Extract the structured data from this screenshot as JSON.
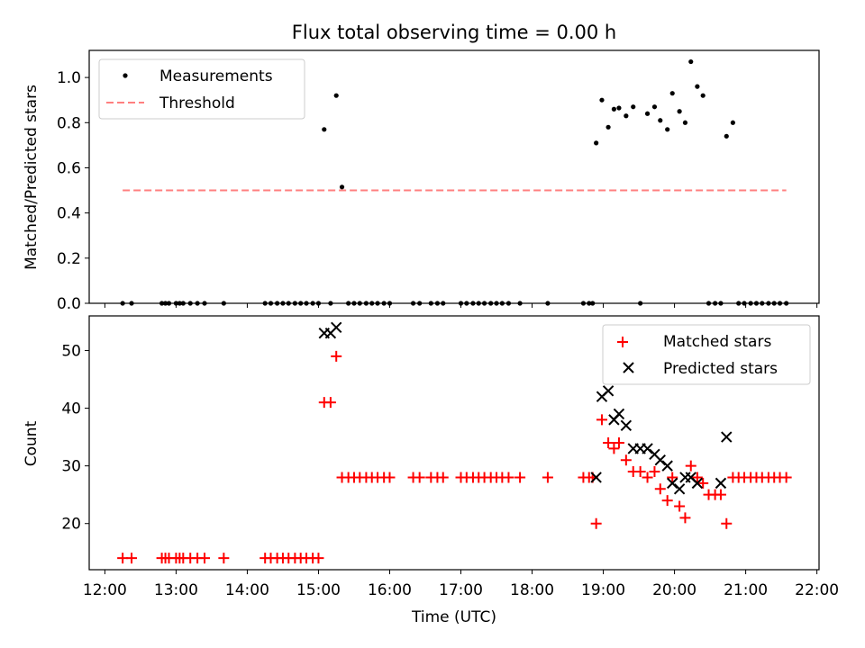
{
  "title": "Flux total observing time = 0.00 h",
  "colors": {
    "measurement": "#000000",
    "threshold": "#ff7f7f",
    "matched": "#ff0000",
    "predicted": "#000000"
  },
  "chart_data": [
    {
      "type": "scatter",
      "title": "Flux total observing time = 0.00 h",
      "xlabel": "",
      "ylabel": "Matched/Predicted stars",
      "ylim": [
        0,
        1.12
      ],
      "yticks": [
        "0.0",
        "0.2",
        "0.4",
        "0.6",
        "0.8",
        "1.0"
      ],
      "legend_position": "upper-left",
      "legend": [
        "Measurements",
        "Threshold"
      ],
      "series": [
        {
          "name": "Measurements",
          "marker": "dot",
          "x": [
            12.25,
            12.375,
            12.8,
            12.85,
            12.9,
            13.0,
            13.05,
            13.1,
            13.2,
            13.3,
            13.4,
            13.67,
            14.25,
            14.33,
            14.42,
            14.5,
            14.58,
            14.67,
            14.75,
            14.83,
            14.92,
            15.0,
            15.08,
            15.17,
            15.25,
            15.33,
            15.42,
            15.5,
            15.58,
            15.67,
            15.75,
            15.83,
            15.92,
            16.0,
            16.33,
            16.42,
            16.58,
            16.67,
            16.75,
            17.0,
            17.08,
            17.17,
            17.25,
            17.33,
            17.42,
            17.5,
            17.58,
            17.67,
            17.83,
            18.22,
            18.72,
            18.8,
            18.85,
            18.9,
            18.98,
            19.07,
            19.15,
            19.22,
            19.32,
            19.42,
            19.52,
            19.62,
            19.72,
            19.8,
            19.9,
            19.97,
            20.07,
            20.15,
            20.23,
            20.32,
            20.4,
            20.48,
            20.57,
            20.65,
            20.73,
            20.82,
            20.9,
            20.98,
            21.07,
            21.15,
            21.23,
            21.32,
            21.4,
            21.48,
            21.57
          ],
          "y": [
            0,
            0,
            0,
            0,
            0,
            0,
            0,
            0,
            0,
            0,
            0,
            0,
            0,
            0,
            0,
            0,
            0,
            0,
            0,
            0,
            0,
            0,
            0.77,
            0,
            0.92,
            0.515,
            0,
            0,
            0,
            0,
            0,
            0,
            0,
            0,
            0,
            0,
            0,
            0,
            0,
            0,
            0,
            0,
            0,
            0,
            0,
            0,
            0,
            0,
            0,
            0,
            0,
            0,
            0,
            0.71,
            0.9,
            0.78,
            0.86,
            0.865,
            0.83,
            0.87,
            0,
            0.84,
            0.87,
            0.81,
            0.77,
            0.93,
            0.85,
            0.8,
            1.07,
            0.96,
            0.92,
            0,
            0,
            0,
            0.74,
            0.8,
            0,
            0,
            0,
            0,
            0,
            0,
            0,
            0,
            0
          ]
        },
        {
          "name": "Threshold",
          "style": "dashed",
          "x": [
            12.25,
            21.57
          ],
          "y": [
            0.5,
            0.5
          ]
        }
      ]
    },
    {
      "type": "scatter",
      "xlabel": "Time (UTC)",
      "ylabel": "Count",
      "xlim": [
        11.78,
        22.03
      ],
      "ylim": [
        12,
        56
      ],
      "xticks": [
        12,
        13,
        14,
        15,
        16,
        17,
        18,
        19,
        20,
        21,
        22
      ],
      "xtick_labels": [
        "12:00",
        "13:00",
        "14:00",
        "15:00",
        "16:00",
        "17:00",
        "18:00",
        "19:00",
        "20:00",
        "21:00",
        "22:00"
      ],
      "yticks": [
        "20",
        "30",
        "40",
        "50"
      ],
      "legend_position": "upper-right",
      "legend": [
        "Matched stars",
        "Predicted stars"
      ],
      "series": [
        {
          "name": "Matched stars",
          "marker": "plus",
          "x": [
            12.25,
            12.375,
            12.8,
            12.85,
            12.9,
            13.0,
            13.05,
            13.1,
            13.2,
            13.3,
            13.4,
            13.67,
            14.25,
            14.33,
            14.42,
            14.5,
            14.58,
            14.67,
            14.75,
            14.83,
            14.92,
            15.0,
            15.08,
            15.17,
            15.25,
            15.33,
            15.42,
            15.5,
            15.58,
            15.67,
            15.75,
            15.83,
            15.92,
            16.0,
            16.33,
            16.42,
            16.58,
            16.67,
            16.75,
            17.0,
            17.08,
            17.17,
            17.25,
            17.33,
            17.42,
            17.5,
            17.58,
            17.67,
            17.83,
            18.22,
            18.72,
            18.8,
            18.85,
            18.9,
            18.98,
            19.07,
            19.15,
            19.22,
            19.32,
            19.42,
            19.52,
            19.62,
            19.72,
            19.8,
            19.9,
            19.97,
            20.07,
            20.15,
            20.23,
            20.32,
            20.4,
            20.48,
            20.57,
            20.65,
            20.73,
            20.82,
            20.9,
            20.98,
            21.07,
            21.15,
            21.23,
            21.32,
            21.4,
            21.48,
            21.57
          ],
          "y": [
            14,
            14,
            14,
            14,
            14,
            14,
            14,
            14,
            14,
            14,
            14,
            14,
            14,
            14,
            14,
            14,
            14,
            14,
            14,
            14,
            14,
            14,
            41,
            41,
            49,
            28,
            28,
            28,
            28,
            28,
            28,
            28,
            28,
            28,
            28,
            28,
            28,
            28,
            28,
            28,
            28,
            28,
            28,
            28,
            28,
            28,
            28,
            28,
            28,
            28,
            28,
            28,
            28,
            20,
            38,
            34,
            33,
            34,
            31,
            29,
            29,
            28,
            29,
            26,
            24,
            28,
            23,
            21,
            30,
            28,
            27,
            25,
            25,
            25,
            20,
            28,
            28,
            28,
            28,
            28,
            28,
            28,
            28,
            28,
            28
          ]
        },
        {
          "name": "Predicted stars",
          "marker": "x",
          "x": [
            15.08,
            15.17,
            15.25,
            18.9,
            18.98,
            19.07,
            19.15,
            19.22,
            19.32,
            19.42,
            19.52,
            19.62,
            19.72,
            19.8,
            19.9,
            19.97,
            20.07,
            20.15,
            20.23,
            20.32,
            20.65,
            20.73
          ],
          "y": [
            53,
            53,
            54,
            28,
            42,
            43,
            38,
            39,
            37,
            33,
            33,
            33,
            32,
            31,
            30,
            27,
            26,
            28,
            28,
            27,
            27,
            35
          ]
        }
      ]
    }
  ]
}
